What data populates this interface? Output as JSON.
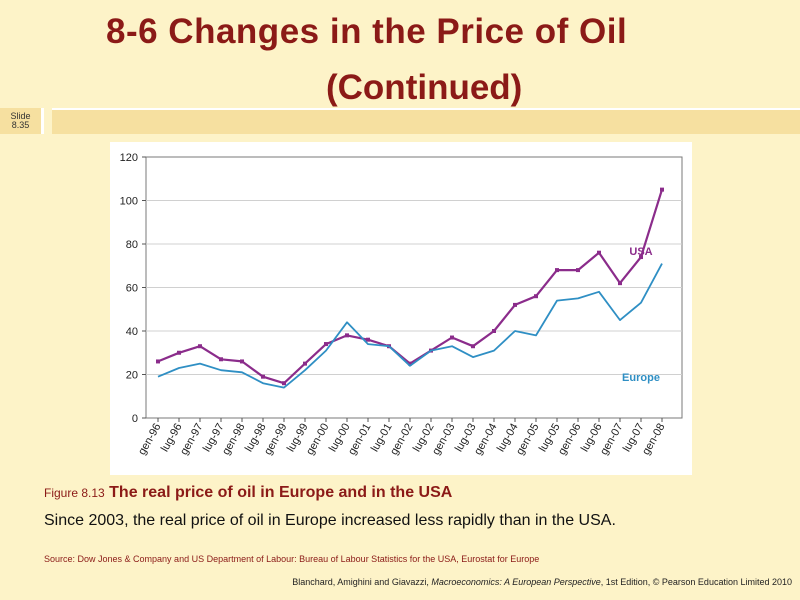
{
  "slide": {
    "title_line1": "8-6  Changes in the Price of Oil",
    "title_line2": "(Continued)",
    "slide_label_1": "Slide",
    "slide_label_2": "8.35"
  },
  "caption": {
    "figure_label": "Figure 8.13",
    "figure_title": "The real price of oil in Europe and in the USA",
    "description": "Since 2003, the real price of oil in Europe increased less rapidly than in the USA.",
    "source": "Source: Dow Jones & Company and US Department of Labour: Bureau of Labour Statistics for the USA, Eurostat for Europe"
  },
  "footer": {
    "authors": "Blanchard, Amighini and Giavazzi, ",
    "book": "Macroeconomics: A European Perspective",
    "edition": ", 1st Edition, © Pearson Education Limited 2010"
  },
  "colors": {
    "title": "#8b1a17",
    "usa": "#8b2c8b",
    "europe": "#2f8fc4",
    "grid": "#d0d0d0"
  },
  "chart_data": {
    "type": "line",
    "title": "",
    "xlabel": "",
    "ylabel": "",
    "ylim": [
      0,
      120
    ],
    "yticks": [
      0,
      20,
      40,
      60,
      80,
      100,
      120
    ],
    "categories": [
      "gen-96",
      "lug-96",
      "gen-97",
      "lug-97",
      "gen-98",
      "lug-98",
      "gen-99",
      "lug-99",
      "gen-00",
      "lug-00",
      "gen-01",
      "lug-01",
      "gen-02",
      "lug-02",
      "gen-03",
      "lug-03",
      "gen-04",
      "lug-04",
      "gen-05",
      "lug-05",
      "gen-06",
      "lug-06",
      "gen-07",
      "lug-07",
      "gen-08"
    ],
    "grid": true,
    "series": [
      {
        "name": "USA",
        "values": [
          26,
          30,
          33,
          27,
          26,
          19,
          16,
          25,
          34,
          38,
          36,
          33,
          25,
          31,
          37,
          33,
          40,
          52,
          56,
          68,
          68,
          76,
          62,
          74,
          105
        ],
        "label_value": [
          23,
          75
        ]
      },
      {
        "name": "Europe",
        "values": [
          19,
          23,
          25,
          22,
          21,
          16,
          14,
          22,
          31,
          44,
          34,
          33,
          24,
          31,
          33,
          28,
          31,
          40,
          38,
          54,
          55,
          58,
          45,
          53,
          71
        ],
        "label_value": [
          23,
          17
        ]
      }
    ]
  }
}
